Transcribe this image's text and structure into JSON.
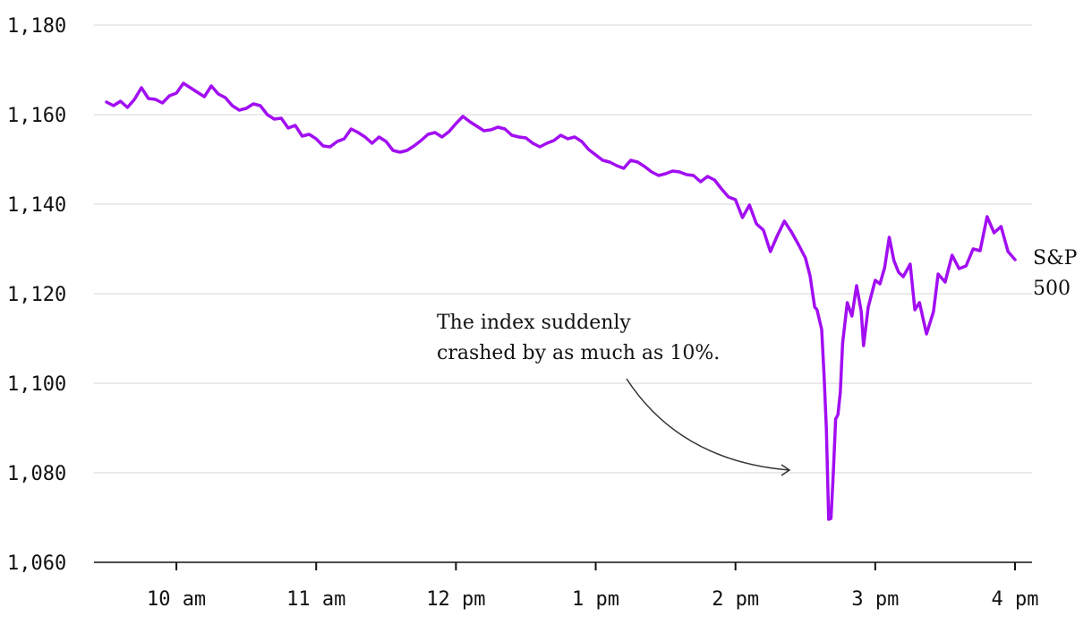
{
  "chart_data": {
    "type": "line",
    "title": "",
    "xlabel": "",
    "ylabel": "",
    "ylim": [
      1060,
      1180
    ],
    "xlim": [
      "09:30",
      "16:00"
    ],
    "grid": true,
    "y_ticks": [
      1060,
      1080,
      1100,
      1120,
      1140,
      1160,
      1180
    ],
    "y_tick_labels": [
      "1,060",
      "1,080",
      "1,100",
      "1,120",
      "1,140",
      "1,160",
      "1,180"
    ],
    "x_ticks": [
      "10:00",
      "11:00",
      "12:00",
      "13:00",
      "14:00",
      "15:00",
      "16:00"
    ],
    "x_tick_labels": [
      "10 am",
      "11 am",
      "12 pm",
      "1 pm",
      "2 pm",
      "3 pm",
      "4 pm"
    ],
    "series": [
      {
        "name_lines": [
          "S&P",
          "500"
        ],
        "color": "#a20ef2",
        "points": [
          [
            "09:30",
            1162.8
          ],
          [
            "09:33",
            1162.0
          ],
          [
            "09:36",
            1163.0
          ],
          [
            "09:39",
            1161.6
          ],
          [
            "09:42",
            1163.4
          ],
          [
            "09:45",
            1166.0
          ],
          [
            "09:48",
            1163.6
          ],
          [
            "09:51",
            1163.4
          ],
          [
            "09:54",
            1162.6
          ],
          [
            "09:57",
            1164.2
          ],
          [
            "10:00",
            1164.8
          ],
          [
            "10:03",
            1167.0
          ],
          [
            "10:06",
            1166.0
          ],
          [
            "10:09",
            1165.0
          ],
          [
            "10:12",
            1164.0
          ],
          [
            "10:15",
            1166.4
          ],
          [
            "10:18",
            1164.6
          ],
          [
            "10:21",
            1163.8
          ],
          [
            "10:24",
            1162.0
          ],
          [
            "10:27",
            1161.0
          ],
          [
            "10:30",
            1161.4
          ],
          [
            "10:33",
            1162.4
          ],
          [
            "10:36",
            1162.0
          ],
          [
            "10:39",
            1160.0
          ],
          [
            "10:42",
            1159.0
          ],
          [
            "10:45",
            1159.2
          ],
          [
            "10:48",
            1157.0
          ],
          [
            "10:51",
            1157.6
          ],
          [
            "10:54",
            1155.2
          ],
          [
            "10:57",
            1155.6
          ],
          [
            "11:00",
            1154.6
          ],
          [
            "11:03",
            1153.0
          ],
          [
            "11:06",
            1152.8
          ],
          [
            "11:09",
            1154.0
          ],
          [
            "11:12",
            1154.6
          ],
          [
            "11:15",
            1156.8
          ],
          [
            "11:18",
            1156.0
          ],
          [
            "11:21",
            1155.0
          ],
          [
            "11:24",
            1153.6
          ],
          [
            "11:27",
            1155.0
          ],
          [
            "11:30",
            1154.0
          ],
          [
            "11:33",
            1152.0
          ],
          [
            "11:36",
            1151.6
          ],
          [
            "11:39",
            1152.0
          ],
          [
            "11:42",
            1153.0
          ],
          [
            "11:45",
            1154.2
          ],
          [
            "11:48",
            1155.6
          ],
          [
            "11:51",
            1156.0
          ],
          [
            "11:54",
            1155.0
          ],
          [
            "11:57",
            1156.2
          ],
          [
            "12:00",
            1158.0
          ],
          [
            "12:03",
            1159.6
          ],
          [
            "12:06",
            1158.4
          ],
          [
            "12:09",
            1157.4
          ],
          [
            "12:12",
            1156.4
          ],
          [
            "12:15",
            1156.6
          ],
          [
            "12:18",
            1157.2
          ],
          [
            "12:21",
            1156.8
          ],
          [
            "12:24",
            1155.4
          ],
          [
            "12:27",
            1155.0
          ],
          [
            "12:30",
            1154.8
          ],
          [
            "12:33",
            1153.6
          ],
          [
            "12:36",
            1152.8
          ],
          [
            "12:39",
            1153.6
          ],
          [
            "12:42",
            1154.2
          ],
          [
            "12:45",
            1155.4
          ],
          [
            "12:48",
            1154.6
          ],
          [
            "12:51",
            1155.0
          ],
          [
            "12:54",
            1154.0
          ],
          [
            "12:57",
            1152.2
          ],
          [
            "13:00",
            1151.0
          ],
          [
            "13:03",
            1149.8
          ],
          [
            "13:06",
            1149.4
          ],
          [
            "13:09",
            1148.6
          ],
          [
            "13:12",
            1148.0
          ],
          [
            "13:15",
            1149.8
          ],
          [
            "13:18",
            1149.4
          ],
          [
            "13:21",
            1148.4
          ],
          [
            "13:24",
            1147.2
          ],
          [
            "13:27",
            1146.4
          ],
          [
            "13:30",
            1146.8
          ],
          [
            "13:33",
            1147.4
          ],
          [
            "13:36",
            1147.2
          ],
          [
            "13:39",
            1146.6
          ],
          [
            "13:42",
            1146.4
          ],
          [
            "13:45",
            1145.0
          ],
          [
            "13:48",
            1146.2
          ],
          [
            "13:51",
            1145.4
          ],
          [
            "13:54",
            1143.4
          ],
          [
            "13:57",
            1141.6
          ],
          [
            "14:00",
            1141.0
          ],
          [
            "14:03",
            1137.0
          ],
          [
            "14:06",
            1139.8
          ],
          [
            "14:09",
            1135.6
          ],
          [
            "14:12",
            1134.2
          ],
          [
            "14:15",
            1129.4
          ],
          [
            "14:18",
            1133.0
          ],
          [
            "14:21",
            1136.2
          ],
          [
            "14:24",
            1133.8
          ],
          [
            "14:27",
            1131.0
          ],
          [
            "14:30",
            1128.0
          ],
          [
            "14:32",
            1124.0
          ],
          [
            "14:34",
            1117.0
          ],
          [
            "14:35",
            1116.4
          ],
          [
            "14:37",
            1112.0
          ],
          [
            "14:38",
            1102.0
          ],
          [
            "14:39",
            1090.0
          ],
          [
            "14:40",
            1069.6
          ],
          [
            "14:41",
            1069.8
          ],
          [
            "14:42",
            1080.0
          ],
          [
            "14:43",
            1092.0
          ],
          [
            "14:44",
            1093.0
          ],
          [
            "14:45",
            1098.0
          ],
          [
            "14:46",
            1109.0
          ],
          [
            "14:48",
            1118.0
          ],
          [
            "14:50",
            1115.0
          ],
          [
            "14:52",
            1121.8
          ],
          [
            "14:54",
            1116.0
          ],
          [
            "14:55",
            1108.4
          ],
          [
            "14:57",
            1117.0
          ],
          [
            "15:00",
            1123.0
          ],
          [
            "15:02",
            1122.2
          ],
          [
            "15:04",
            1125.8
          ],
          [
            "15:06",
            1132.6
          ],
          [
            "15:08",
            1127.4
          ],
          [
            "15:10",
            1124.8
          ],
          [
            "15:12",
            1123.8
          ],
          [
            "15:15",
            1126.6
          ],
          [
            "15:17",
            1116.4
          ],
          [
            "15:19",
            1118.0
          ],
          [
            "15:22",
            1111.0
          ],
          [
            "15:25",
            1116.0
          ],
          [
            "15:27",
            1124.4
          ],
          [
            "15:30",
            1122.6
          ],
          [
            "15:33",
            1128.6
          ],
          [
            "15:36",
            1125.6
          ],
          [
            "15:39",
            1126.2
          ],
          [
            "15:42",
            1130.0
          ],
          [
            "15:45",
            1129.6
          ],
          [
            "15:48",
            1137.2
          ],
          [
            "15:51",
            1133.6
          ],
          [
            "15:54",
            1135.0
          ],
          [
            "15:57",
            1129.4
          ],
          [
            "16:00",
            1127.6
          ]
        ]
      }
    ],
    "annotations": [
      {
        "lines": [
          "The index suddenly",
          "crashed by as much as 10%."
        ],
        "points_to": [
          "14:37",
          1080.0
        ]
      }
    ]
  }
}
